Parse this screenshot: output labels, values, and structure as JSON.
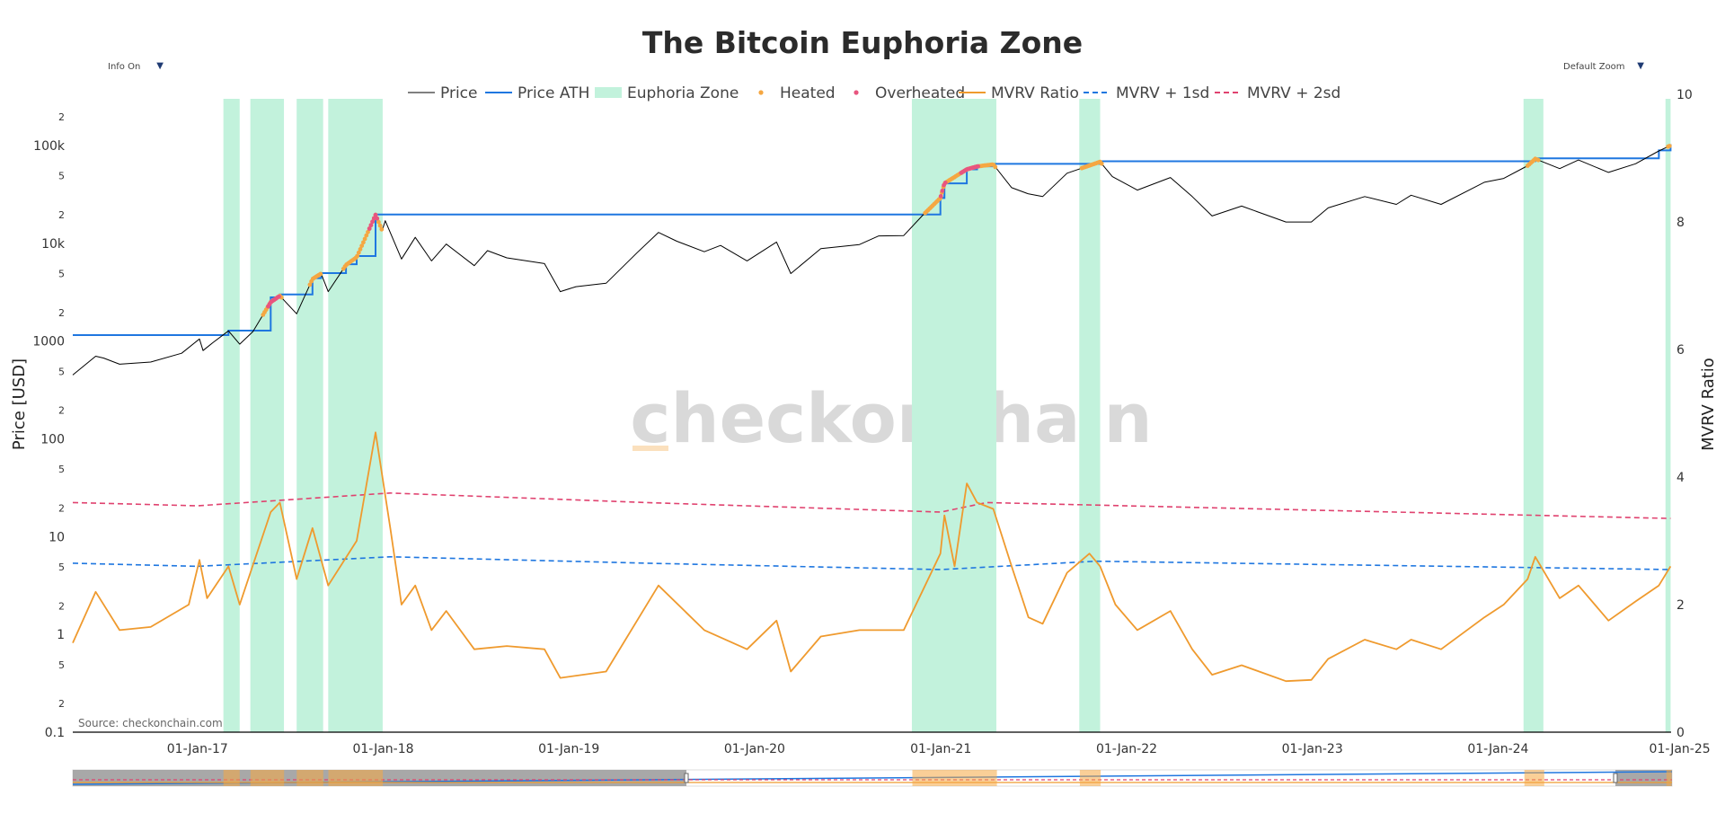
{
  "controls": {
    "info_label": "Info On",
    "zoom_label": "Default Zoom",
    "arrow": "▼"
  },
  "watermark": "checkonchain",
  "source": "Source: checkonchain.com",
  "colors": {
    "price": "#000000",
    "price_ath": "#1f77e0",
    "euphoria_zone": "#c2f2dc",
    "heated": "#f5a742",
    "overheated": "#e8557f",
    "mvrv": "#ef9a2e",
    "mvrv_1sd": "#1f77e0",
    "mvrv_2sd": "#e0426f"
  },
  "chart_data": {
    "type": "line",
    "title": "The Bitcoin Euphoria Zone",
    "ylabel_left": "Price [USD]",
    "ylabel_right": "MVRV Ratio",
    "y_left_scale": "log",
    "y_left_range": [
      0.1,
      300000
    ],
    "y_left_ticks": [
      "0.1",
      "2",
      "5",
      "1",
      "2",
      "5",
      "10",
      "2",
      "5",
      "100",
      "2",
      "5",
      "1000",
      "2",
      "5",
      "10k",
      "2",
      "5",
      "100k",
      "2"
    ],
    "y_right_range": [
      0,
      10
    ],
    "y_right_ticks": [
      "0",
      "2",
      "4",
      "6",
      "8",
      "10"
    ],
    "x_range": [
      "2016-05-01",
      "2024-12-06"
    ],
    "x_ticks": [
      "01-Jan-17",
      "01-Jan-18",
      "01-Jan-19",
      "01-Jan-20",
      "01-Jan-21",
      "01-Jan-22",
      "01-Jan-23",
      "01-Jan-24",
      "01-Jan-25"
    ],
    "legend": [
      "Price",
      "Price ATH",
      "Euphoria Zone",
      "Heated",
      "Overheated",
      "MVRV Ratio",
      "MVRV + 1sd",
      "MVRV + 2sd"
    ],
    "legend_position": "top-center",
    "grid": false,
    "series": [
      {
        "name": "Price",
        "axis": "left",
        "points": [
          [
            "2016-05-01",
            450
          ],
          [
            "2016-06-15",
            700
          ],
          [
            "2016-07-01",
            670
          ],
          [
            "2016-08-01",
            580
          ],
          [
            "2016-10-01",
            610
          ],
          [
            "2016-12-01",
            750
          ],
          [
            "2017-01-05",
            1050
          ],
          [
            "2017-01-12",
            800
          ],
          [
            "2017-02-01",
            970
          ],
          [
            "2017-03-03",
            1270
          ],
          [
            "2017-03-25",
            930
          ],
          [
            "2017-04-20",
            1250
          ],
          [
            "2017-05-25",
            2500
          ],
          [
            "2017-06-12",
            2900
          ],
          [
            "2017-07-15",
            1900
          ],
          [
            "2017-08-15",
            4300
          ],
          [
            "2017-09-01",
            4900
          ],
          [
            "2017-09-15",
            3200
          ],
          [
            "2017-10-20",
            6000
          ],
          [
            "2017-11-10",
            7200
          ],
          [
            "2017-12-17",
            19500
          ],
          [
            "2017-12-30",
            13500
          ],
          [
            "2018-01-05",
            17000
          ],
          [
            "2018-02-06",
            6900
          ],
          [
            "2018-03-05",
            11500
          ],
          [
            "2018-04-06",
            6600
          ],
          [
            "2018-05-05",
            9800
          ],
          [
            "2018-06-29",
            5900
          ],
          [
            "2018-07-25",
            8400
          ],
          [
            "2018-09-01",
            7100
          ],
          [
            "2018-11-14",
            6200
          ],
          [
            "2018-12-15",
            3200
          ],
          [
            "2019-01-15",
            3600
          ],
          [
            "2019-03-15",
            3900
          ],
          [
            "2019-05-15",
            8000
          ],
          [
            "2019-06-26",
            12900
          ],
          [
            "2019-08-01",
            10500
          ],
          [
            "2019-09-24",
            8200
          ],
          [
            "2019-10-26",
            9500
          ],
          [
            "2019-12-17",
            6600
          ],
          [
            "2020-02-13",
            10300
          ],
          [
            "2020-03-12",
            4900
          ],
          [
            "2020-05-10",
            8800
          ],
          [
            "2020-07-25",
            9700
          ],
          [
            "2020-09-01",
            11900
          ],
          [
            "2020-10-20",
            12000
          ],
          [
            "2020-11-25",
            19000
          ],
          [
            "2020-12-31",
            29000
          ],
          [
            "2021-01-08",
            41000
          ],
          [
            "2021-02-21",
            57000
          ],
          [
            "2021-03-13",
            61000
          ],
          [
            "2021-04-14",
            64000
          ],
          [
            "2021-05-20",
            37000
          ],
          [
            "2021-06-22",
            32000
          ],
          [
            "2021-07-20",
            30000
          ],
          [
            "2021-09-06",
            52000
          ],
          [
            "2021-11-10",
            68000
          ],
          [
            "2021-12-04",
            48000
          ],
          [
            "2022-01-22",
            35000
          ],
          [
            "2022-03-28",
            47000
          ],
          [
            "2022-05-10",
            30000
          ],
          [
            "2022-06-18",
            19000
          ],
          [
            "2022-08-15",
            24000
          ],
          [
            "2022-11-10",
            16500
          ],
          [
            "2022-12-30",
            16500
          ],
          [
            "2023-02-01",
            23000
          ],
          [
            "2023-04-14",
            30000
          ],
          [
            "2023-06-15",
            25000
          ],
          [
            "2023-07-14",
            31000
          ],
          [
            "2023-09-11",
            25000
          ],
          [
            "2023-12-05",
            42000
          ],
          [
            "2024-01-12",
            46000
          ],
          [
            "2024-02-28",
            62000
          ],
          [
            "2024-03-14",
            73000
          ],
          [
            "2024-05-01",
            58000
          ],
          [
            "2024-06-07",
            71000
          ],
          [
            "2024-08-05",
            53000
          ],
          [
            "2024-09-27",
            65000
          ],
          [
            "2024-11-12",
            88000
          ],
          [
            "2024-12-05",
            100000
          ]
        ]
      },
      {
        "name": "Price ATH",
        "axis": "left",
        "points": [
          [
            "2016-05-01",
            1150
          ],
          [
            "2017-01-05",
            1150
          ],
          [
            "2017-03-03",
            1280
          ],
          [
            "2017-05-25",
            2800
          ],
          [
            "2017-06-12",
            3000
          ],
          [
            "2017-08-15",
            4400
          ],
          [
            "2017-09-01",
            4950
          ],
          [
            "2017-10-20",
            6100
          ],
          [
            "2017-11-10",
            7400
          ],
          [
            "2017-12-17",
            19700
          ],
          [
            "2020-11-25",
            19700
          ],
          [
            "2020-12-31",
            29000
          ],
          [
            "2021-01-08",
            41000
          ],
          [
            "2021-02-21",
            57000
          ],
          [
            "2021-03-13",
            61300
          ],
          [
            "2021-04-14",
            64800
          ],
          [
            "2021-11-10",
            69000
          ],
          [
            "2024-03-14",
            73800
          ],
          [
            "2024-11-12",
            89000
          ],
          [
            "2024-12-05",
            103000
          ]
        ]
      },
      {
        "name": "MVRV Ratio",
        "axis": "right",
        "points": [
          [
            "2016-05-01",
            1.4
          ],
          [
            "2016-06-15",
            2.2
          ],
          [
            "2016-08-01",
            1.6
          ],
          [
            "2016-10-01",
            1.65
          ],
          [
            "2016-12-15",
            2.0
          ],
          [
            "2017-01-05",
            2.7
          ],
          [
            "2017-01-20",
            2.1
          ],
          [
            "2017-03-03",
            2.6
          ],
          [
            "2017-03-25",
            2.0
          ],
          [
            "2017-05-25",
            3.45
          ],
          [
            "2017-06-12",
            3.6
          ],
          [
            "2017-07-15",
            2.4
          ],
          [
            "2017-08-15",
            3.2
          ],
          [
            "2017-09-15",
            2.3
          ],
          [
            "2017-11-10",
            3.0
          ],
          [
            "2017-12-17",
            4.7
          ],
          [
            "2018-01-15",
            3.2
          ],
          [
            "2018-02-06",
            2.0
          ],
          [
            "2018-03-05",
            2.3
          ],
          [
            "2018-04-06",
            1.6
          ],
          [
            "2018-05-05",
            1.9
          ],
          [
            "2018-06-29",
            1.3
          ],
          [
            "2018-09-01",
            1.35
          ],
          [
            "2018-11-14",
            1.3
          ],
          [
            "2018-12-15",
            0.85
          ],
          [
            "2019-03-15",
            0.95
          ],
          [
            "2019-06-26",
            2.3
          ],
          [
            "2019-09-24",
            1.6
          ],
          [
            "2019-12-17",
            1.3
          ],
          [
            "2020-02-13",
            1.75
          ],
          [
            "2020-03-12",
            0.95
          ],
          [
            "2020-05-10",
            1.5
          ],
          [
            "2020-07-25",
            1.6
          ],
          [
            "2020-10-20",
            1.6
          ],
          [
            "2020-11-25",
            2.2
          ],
          [
            "2020-12-31",
            2.8
          ],
          [
            "2021-01-08",
            3.4
          ],
          [
            "2021-01-28",
            2.6
          ],
          [
            "2021-02-21",
            3.9
          ],
          [
            "2021-03-13",
            3.6
          ],
          [
            "2021-04-14",
            3.5
          ],
          [
            "2021-05-20",
            2.6
          ],
          [
            "2021-06-22",
            1.8
          ],
          [
            "2021-07-20",
            1.7
          ],
          [
            "2021-09-06",
            2.5
          ],
          [
            "2021-10-20",
            2.8
          ],
          [
            "2021-11-10",
            2.6
          ],
          [
            "2021-12-10",
            2.0
          ],
          [
            "2022-01-22",
            1.6
          ],
          [
            "2022-03-28",
            1.9
          ],
          [
            "2022-05-10",
            1.3
          ],
          [
            "2022-06-18",
            0.9
          ],
          [
            "2022-08-15",
            1.05
          ],
          [
            "2022-11-10",
            0.8
          ],
          [
            "2022-12-30",
            0.82
          ],
          [
            "2023-02-01",
            1.15
          ],
          [
            "2023-04-14",
            1.45
          ],
          [
            "2023-06-15",
            1.3
          ],
          [
            "2023-07-14",
            1.45
          ],
          [
            "2023-09-11",
            1.3
          ],
          [
            "2023-12-05",
            1.8
          ],
          [
            "2024-01-12",
            2.0
          ],
          [
            "2024-02-28",
            2.4
          ],
          [
            "2024-03-14",
            2.75
          ],
          [
            "2024-05-01",
            2.1
          ],
          [
            "2024-06-07",
            2.3
          ],
          [
            "2024-08-05",
            1.75
          ],
          [
            "2024-09-27",
            2.05
          ],
          [
            "2024-11-12",
            2.3
          ],
          [
            "2024-12-05",
            2.6
          ]
        ]
      },
      {
        "name": "MVRV + 1sd",
        "axis": "right",
        "points": [
          [
            "2016-05-01",
            2.65
          ],
          [
            "2017-01-01",
            2.6
          ],
          [
            "2018-01-15",
            2.75
          ],
          [
            "2019-06-01",
            2.65
          ],
          [
            "2021-01-01",
            2.55
          ],
          [
            "2021-11-01",
            2.68
          ],
          [
            "2024-12-05",
            2.55
          ]
        ]
      },
      {
        "name": "MVRV + 2sd",
        "axis": "right",
        "points": [
          [
            "2016-05-01",
            3.6
          ],
          [
            "2017-01-01",
            3.55
          ],
          [
            "2018-01-15",
            3.75
          ],
          [
            "2019-06-01",
            3.6
          ],
          [
            "2021-01-01",
            3.45
          ],
          [
            "2021-04-01",
            3.6
          ],
          [
            "2024-12-05",
            3.35
          ]
        ]
      }
    ],
    "euphoria_zones": [
      [
        "2017-02-21",
        "2017-03-25"
      ],
      [
        "2017-04-15",
        "2017-06-20"
      ],
      [
        "2017-07-15",
        "2017-09-05"
      ],
      [
        "2017-09-15",
        "2017-12-31"
      ],
      [
        "2020-11-05",
        "2021-04-20"
      ],
      [
        "2021-09-30",
        "2021-11-10"
      ],
      [
        "2024-02-20",
        "2024-03-30"
      ],
      [
        "2024-11-25",
        "2024-12-05"
      ]
    ],
    "heated_ranges": [
      [
        "2017-05-10",
        "2017-06-15"
      ],
      [
        "2017-08-10",
        "2017-09-01"
      ],
      [
        "2017-10-15",
        "2017-12-31"
      ],
      [
        "2020-12-01",
        "2021-04-20"
      ],
      [
        "2021-10-05",
        "2021-11-15"
      ],
      [
        "2024-02-28",
        "2024-03-20"
      ],
      [
        "2024-11-30",
        "2024-12-05"
      ]
    ],
    "overheated_ranges": [
      [
        "2017-05-20",
        "2017-06-12"
      ],
      [
        "2017-12-05",
        "2017-12-22"
      ],
      [
        "2021-01-01",
        "2021-01-12"
      ],
      [
        "2021-02-10",
        "2021-03-15"
      ]
    ]
  }
}
